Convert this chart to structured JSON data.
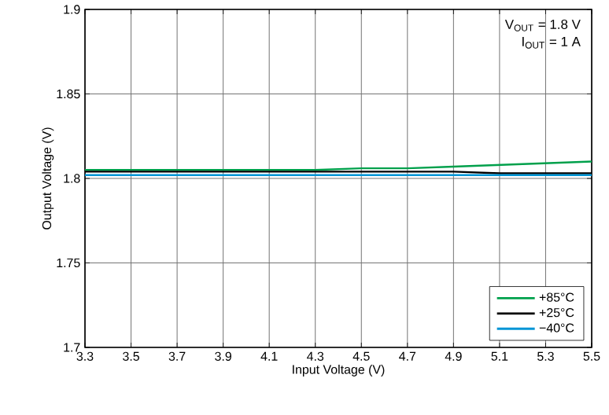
{
  "chart_data": {
    "type": "line",
    "xlabel": "Input Voltage (V)",
    "ylabel": "Output Voltage (V)",
    "x": [
      3.3,
      3.5,
      3.7,
      3.9,
      4.1,
      4.3,
      4.5,
      4.7,
      4.9,
      5.1,
      5.3,
      5.5
    ],
    "series": [
      {
        "name": "+85°C",
        "color": "#00a04b",
        "values": [
          1.805,
          1.805,
          1.805,
          1.805,
          1.805,
          1.805,
          1.806,
          1.806,
          1.807,
          1.808,
          1.809,
          1.81
        ]
      },
      {
        "name": "+25°C",
        "color": "#000000",
        "values": [
          1.804,
          1.804,
          1.804,
          1.804,
          1.804,
          1.804,
          1.804,
          1.804,
          1.804,
          1.803,
          1.803,
          1.803
        ]
      },
      {
        "name": "−40°C",
        "color": "#0095d6",
        "values": [
          1.802,
          1.802,
          1.802,
          1.802,
          1.802,
          1.802,
          1.802,
          1.802,
          1.802,
          1.802,
          1.802,
          1.802
        ]
      }
    ],
    "xlim": [
      3.3,
      5.5
    ],
    "ylim": [
      1.7,
      1.9
    ],
    "xticks": [
      3.3,
      3.5,
      3.7,
      3.9,
      4.1,
      4.3,
      4.5,
      4.7,
      4.9,
      5.1,
      5.3,
      5.5
    ],
    "yticks": [
      1.7,
      1.75,
      1.8,
      1.85,
      1.9
    ],
    "annotations": [
      "V$_{OUT}$ = 1.8 V",
      "I$_{OUT}$ = 1 A"
    ],
    "grid": true,
    "legend": "bottom right",
    "marker": "none",
    "line_style": "solid"
  }
}
